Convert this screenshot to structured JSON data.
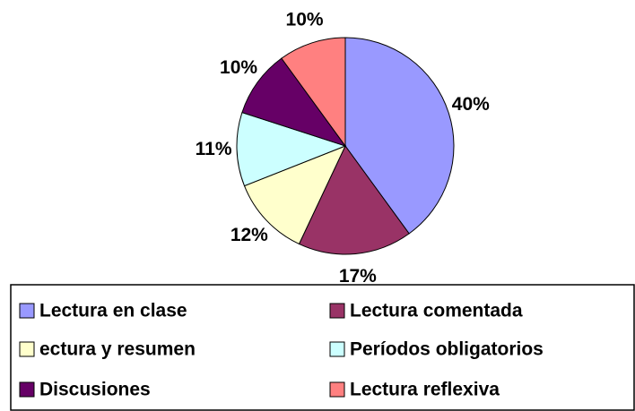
{
  "chart_data": {
    "type": "pie",
    "categories": [
      "Lectura en clase",
      "Lectura comentada",
      "ectura y resumen",
      "Períodos obligatorios",
      "Discusiones",
      "Lectura reflexiva"
    ],
    "values": [
      40,
      17,
      12,
      11,
      10,
      10
    ],
    "value_labels": [
      "40%",
      "17%",
      "12%",
      "11%",
      "10%",
      "10%"
    ],
    "colors": [
      "#9999ff",
      "#993366",
      "#ffffcc",
      "#ccffff",
      "#660066",
      "#ff8080"
    ],
    "legend": "bottom"
  }
}
